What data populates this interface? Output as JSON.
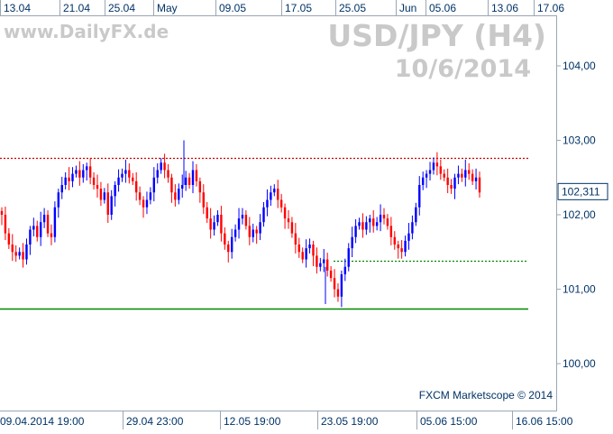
{
  "watermark": {
    "site": "www.DailyFX.de",
    "symbol": "USD/JPY (H4)",
    "date": "10/6/2014"
  },
  "credit": "FXCM Marketscope © 2014",
  "colors": {
    "bull": "#0000ff",
    "bear": "#ff0000",
    "resistance": "#cc0000",
    "support_dotted": "#008800",
    "support_solid": "#008800",
    "axis_text": "#003366",
    "watermark": "#c9c9c9"
  },
  "chart_data": {
    "type": "candlestick",
    "title": "USD/JPY (H4)",
    "ylim": [
      99.6,
      104.3
    ],
    "y_ticks": [
      "100,00",
      "101,00",
      "102,00",
      "103,00",
      "104,00"
    ],
    "y_tick_values": [
      100.0,
      101.0,
      102.0,
      103.0,
      104.0
    ],
    "top_axis_labels": [
      "13.04",
      "21.04",
      "25.04",
      "May",
      "09.05",
      "17.05",
      "25.05",
      "Jun",
      "05.06",
      "13.06",
      "17.06"
    ],
    "bottom_axis_labels": [
      "09.04.2014 19:00",
      "29.04 23:00",
      "12.05 19:00",
      "23.05 19:00",
      "05.06 15:00",
      "16.06 15:00"
    ],
    "last_price": "102,311",
    "horizontal_lines": [
      {
        "style": "dotted",
        "color": "#cc0000",
        "value": 102.76
      },
      {
        "style": "dotted",
        "color": "#008800",
        "value": 101.38
      },
      {
        "style": "solid",
        "color": "#008800",
        "value": 100.74
      }
    ],
    "closes": [
      102.0,
      101.75,
      101.6,
      101.5,
      101.45,
      101.5,
      101.4,
      101.6,
      101.8,
      101.85,
      101.7,
      101.9,
      102.0,
      101.75,
      101.7,
      102.1,
      102.3,
      102.4,
      102.5,
      102.45,
      102.55,
      102.6,
      102.5,
      102.6,
      102.65,
      102.5,
      102.4,
      102.35,
      102.2,
      102.3,
      102.0,
      102.25,
      102.4,
      102.5,
      102.55,
      102.6,
      102.5,
      102.45,
      102.3,
      102.2,
      102.1,
      102.2,
      102.3,
      102.5,
      102.6,
      102.7,
      102.6,
      102.5,
      102.3,
      102.2,
      102.35,
      102.4,
      102.5,
      102.4,
      102.6,
      102.45,
      102.3,
      102.1,
      101.95,
      101.8,
      101.9,
      102.0,
      101.75,
      101.6,
      101.5,
      101.7,
      101.8,
      101.95,
      102.0,
      101.85,
      101.7,
      101.8,
      101.75,
      101.9,
      102.1,
      102.2,
      102.3,
      102.35,
      102.2,
      102.1,
      101.95,
      101.9,
      101.75,
      101.6,
      101.5,
      101.4,
      101.55,
      101.6,
      101.45,
      101.3,
      101.35,
      101.4,
      101.25,
      101.15,
      101.0,
      100.9,
      101.2,
      101.3,
      101.55,
      101.7,
      101.85,
      101.9,
      101.8,
      101.9,
      101.95,
      101.85,
      101.9,
      102.0,
      101.95,
      101.85,
      101.7,
      101.6,
      101.55,
      101.5,
      101.65,
      101.75,
      101.9,
      102.1,
      102.4,
      102.5,
      102.55,
      102.6,
      102.7,
      102.65,
      102.55,
      102.5,
      102.4,
      102.35,
      102.5,
      102.55,
      102.5,
      102.6,
      102.55,
      102.45,
      102.5,
      102.3
    ]
  }
}
